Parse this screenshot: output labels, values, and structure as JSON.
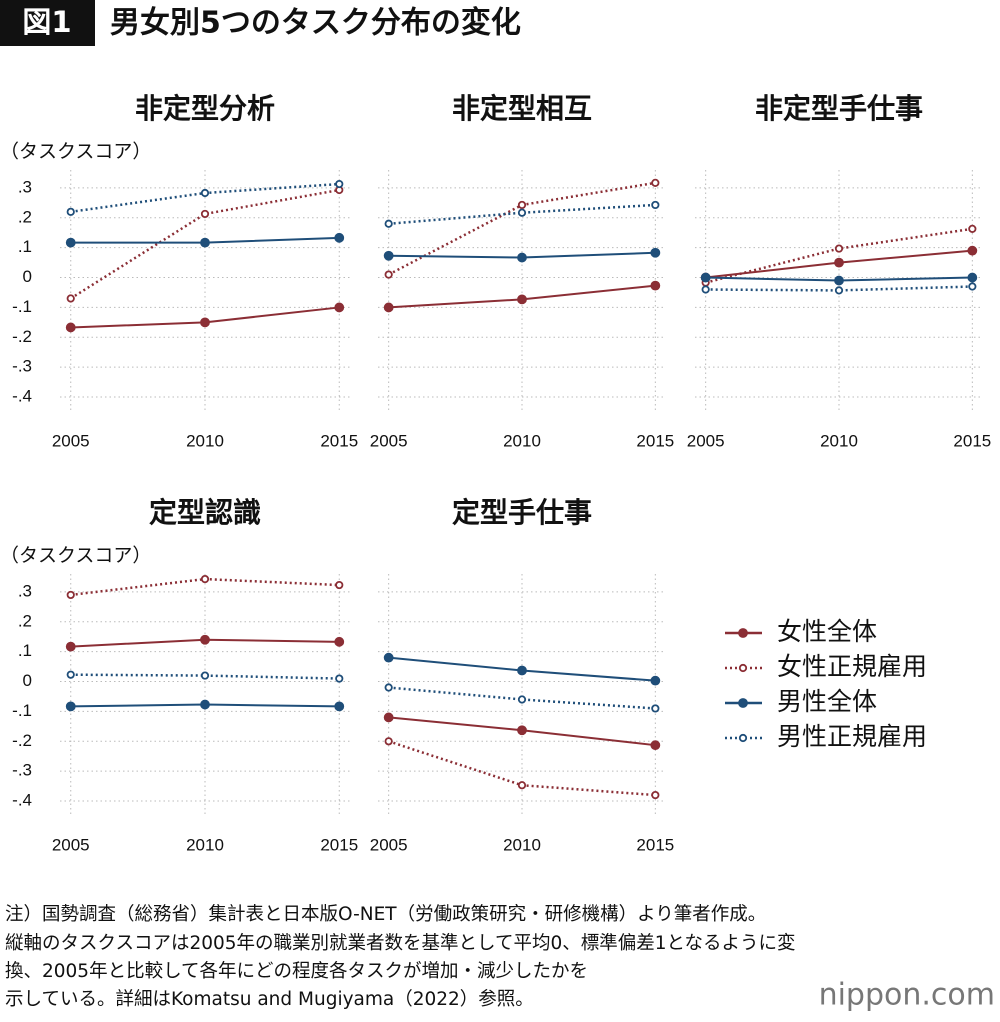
{
  "header": {
    "badge": "図1",
    "title": "男女別5つのタスク分布の変化"
  },
  "note": [
    "注）国勢調査（総務省）集計表と日本版O-NET（労働政策研究・研修機構）より筆者作成。",
    "縦軸のタスクスコアは2005年の職業別就業者数を基準として平均0、標準偏差1となるように変",
    "換、2005年と比較して各年にどの程度各タスクが増加・減少したかを",
    "示している。詳細はKomatsu and Mugiyama（2022）参照。"
  ],
  "logo": "nippon.com",
  "chart_data": [
    {
      "type": "line",
      "title": "非定型分析",
      "ylabel": "（タスクスコア）",
      "grid": true,
      "x": [
        2005,
        2010,
        2015
      ],
      "xlim": [
        2004.6,
        2015.4
      ],
      "xticks": [
        2005,
        2010,
        2015
      ],
      "ylim": [
        -0.45,
        0.36
      ],
      "yticks": [
        {
          "value": 0.3,
          "label": ".3"
        },
        {
          "value": 0.2,
          "label": ".2"
        },
        {
          "value": 0.1,
          "label": ".1"
        },
        0,
        {
          "value": -0.1,
          "label": "-.1"
        },
        {
          "value": -0.2,
          "label": "-.2"
        },
        {
          "value": -0.3,
          "label": "-.3"
        },
        {
          "value": -0.4,
          "label": "-.4"
        }
      ],
      "series": [
        {
          "name": "女性全体",
          "color": "#8b2e35",
          "line_style": "solid",
          "marker": "filled",
          "values": [
            -0.167,
            -0.15,
            -0.1
          ]
        },
        {
          "name": "女性正規雇用",
          "color": "#8b2e35",
          "line_style": "dotted",
          "marker": "hollow",
          "values": [
            -0.07,
            0.213,
            0.293
          ]
        },
        {
          "name": "男性全体",
          "color": "#1f4e79",
          "line_style": "solid",
          "marker": "filled",
          "values": [
            0.117,
            0.117,
            0.133
          ]
        },
        {
          "name": "男性正規雇用",
          "color": "#1f4e79",
          "line_style": "dotted",
          "marker": "hollow",
          "values": [
            0.22,
            0.283,
            0.313
          ]
        }
      ]
    },
    {
      "type": "line",
      "title": "非定型相互",
      "grid": true,
      "sharey": true,
      "x": [
        2005,
        2010,
        2015
      ],
      "xlim": [
        2004.6,
        2015.4
      ],
      "xticks": [
        2005,
        2010,
        2015
      ],
      "ylim": [
        -0.45,
        0.36
      ],
      "series": [
        {
          "name": "女性全体",
          "color": "#8b2e35",
          "line_style": "solid",
          "marker": "filled",
          "values": [
            -0.1,
            -0.073,
            -0.027
          ]
        },
        {
          "name": "女性正規雇用",
          "color": "#8b2e35",
          "line_style": "dotted",
          "marker": "hollow",
          "values": [
            0.01,
            0.243,
            0.317
          ]
        },
        {
          "name": "男性全体",
          "color": "#1f4e79",
          "line_style": "solid",
          "marker": "filled",
          "values": [
            0.073,
            0.067,
            0.083
          ]
        },
        {
          "name": "男性正規雇用",
          "color": "#1f4e79",
          "line_style": "dotted",
          "marker": "hollow",
          "values": [
            0.18,
            0.217,
            0.243
          ]
        }
      ]
    },
    {
      "type": "line",
      "title": "非定型手仕事",
      "grid": true,
      "sharey": true,
      "x": [
        2005,
        2010,
        2015
      ],
      "xlim": [
        2004.6,
        2015.4
      ],
      "xticks": [
        2005,
        2010,
        2015
      ],
      "ylim": [
        -0.45,
        0.36
      ],
      "series": [
        {
          "name": "女性全体",
          "color": "#8b2e35",
          "line_style": "solid",
          "marker": "filled",
          "values": [
            0,
            0.05,
            0.09
          ]
        },
        {
          "name": "女性正規雇用",
          "color": "#8b2e35",
          "line_style": "dotted",
          "marker": "hollow",
          "values": [
            -0.017,
            0.097,
            0.163
          ]
        },
        {
          "name": "男性全体",
          "color": "#1f4e79",
          "line_style": "solid",
          "marker": "filled",
          "values": [
            0,
            -0.01,
            0
          ]
        },
        {
          "name": "男性正規雇用",
          "color": "#1f4e79",
          "line_style": "dotted",
          "marker": "hollow",
          "values": [
            -0.04,
            -0.043,
            -0.03
          ]
        }
      ]
    },
    {
      "type": "line",
      "title": "定型認識",
      "ylabel": "（タスクスコア）",
      "grid": true,
      "x": [
        2005,
        2010,
        2015
      ],
      "xlim": [
        2004.6,
        2015.4
      ],
      "xticks": [
        2005,
        2010,
        2015
      ],
      "ylim": [
        -0.45,
        0.36
      ],
      "yticks": [
        {
          "value": 0.3,
          "label": ".3"
        },
        {
          "value": 0.2,
          "label": ".2"
        },
        {
          "value": 0.1,
          "label": ".1"
        },
        0,
        {
          "value": -0.1,
          "label": "-.1"
        },
        {
          "value": -0.2,
          "label": "-.2"
        },
        {
          "value": -0.3,
          "label": "-.3"
        },
        {
          "value": -0.4,
          "label": "-.4"
        }
      ],
      "series": [
        {
          "name": "女性全体",
          "color": "#8b2e35",
          "line_style": "solid",
          "marker": "filled",
          "values": [
            0.117,
            0.14,
            0.133
          ]
        },
        {
          "name": "女性正規雇用",
          "color": "#8b2e35",
          "line_style": "dotted",
          "marker": "hollow",
          "values": [
            0.29,
            0.343,
            0.323
          ]
        },
        {
          "name": "男性全体",
          "color": "#1f4e79",
          "line_style": "solid",
          "marker": "filled",
          "values": [
            -0.083,
            -0.077,
            -0.083
          ]
        },
        {
          "name": "男性正規雇用",
          "color": "#1f4e79",
          "line_style": "dotted",
          "marker": "hollow",
          "values": [
            0.023,
            0.02,
            0.01
          ]
        }
      ]
    },
    {
      "type": "line",
      "title": "定型手仕事",
      "grid": true,
      "sharey": true,
      "legend": "right",
      "x": [
        2005,
        2010,
        2015
      ],
      "xlim": [
        2004.6,
        2015.4
      ],
      "xticks": [
        2005,
        2010,
        2015
      ],
      "ylim": [
        -0.45,
        0.36
      ],
      "series": [
        {
          "name": "女性全体",
          "color": "#8b2e35",
          "line_style": "solid",
          "marker": "filled",
          "values": [
            -0.12,
            -0.163,
            -0.213
          ]
        },
        {
          "name": "女性正規雇用",
          "color": "#8b2e35",
          "line_style": "dotted",
          "marker": "hollow",
          "values": [
            -0.2,
            -0.347,
            -0.38
          ]
        },
        {
          "name": "男性全体",
          "color": "#1f4e79",
          "line_style": "solid",
          "marker": "filled",
          "values": [
            0.08,
            0.037,
            0.003
          ]
        },
        {
          "name": "男性正規雇用",
          "color": "#1f4e79",
          "line_style": "dotted",
          "marker": "hollow",
          "values": [
            -0.02,
            -0.06,
            -0.09
          ]
        }
      ]
    }
  ]
}
